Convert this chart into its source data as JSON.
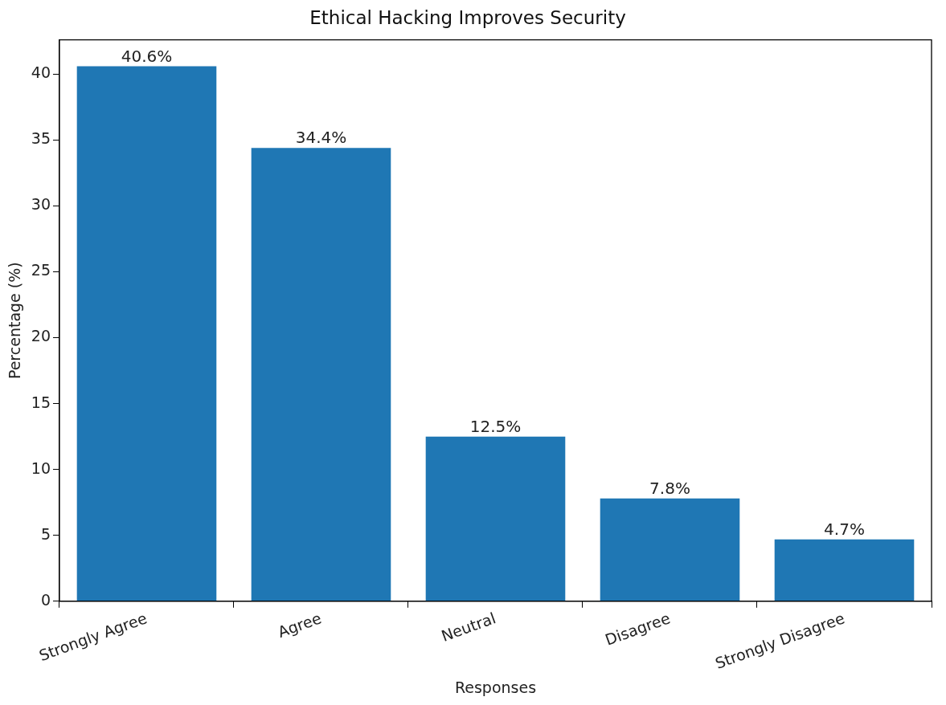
{
  "chart_data": {
    "type": "bar",
    "title": "Ethical Hacking Improves Security",
    "xlabel": "Responses",
    "ylabel": "Percentage (%)",
    "categories": [
      "Strongly Agree",
      "Agree",
      "Neutral",
      "Disagree",
      "Strongly Disagree"
    ],
    "values": [
      40.6,
      34.4,
      12.5,
      7.8,
      4.7
    ],
    "value_labels": [
      "40.6%",
      "34.4%",
      "12.5%",
      "7.8%",
      "4.7%"
    ],
    "color": "#1f77b4",
    "ylim": [
      0,
      42.6
    ],
    "yticks": [
      0,
      5,
      10,
      15,
      20,
      25,
      30,
      35,
      40
    ],
    "grid": false,
    "legend": false
  }
}
